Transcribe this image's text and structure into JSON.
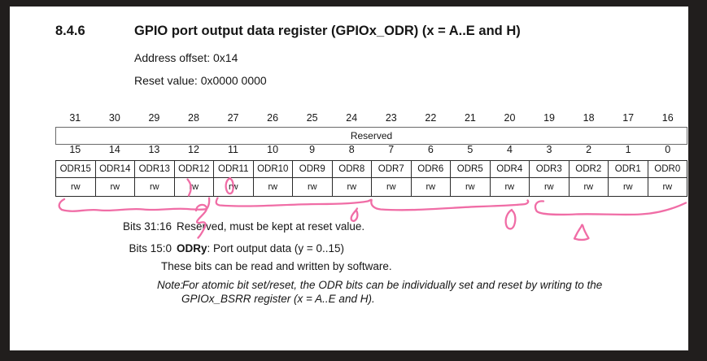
{
  "document": {
    "section_number": "8.4.6",
    "title": "GPIO port output data register (GPIOx_ODR) (x = A..E and H)",
    "address_offset": "Address offset: 0x14",
    "reset_value": "Reset value: 0x0000 0000"
  },
  "register_table": {
    "bits_high": [
      "31",
      "30",
      "29",
      "28",
      "27",
      "26",
      "25",
      "24",
      "23",
      "22",
      "21",
      "20",
      "19",
      "18",
      "17",
      "16"
    ],
    "reserved_label": "Reserved",
    "bits_low": [
      "15",
      "14",
      "13",
      "12",
      "11",
      "10",
      "9",
      "8",
      "7",
      "6",
      "5",
      "4",
      "3",
      "2",
      "1",
      "0"
    ],
    "fields": [
      "ODR15",
      "ODR14",
      "ODR13",
      "ODR12",
      "ODR11",
      "ODR10",
      "ODR9",
      "ODR8",
      "ODR7",
      "ODR6",
      "ODR5",
      "ODR4",
      "ODR3",
      "ODR2",
      "ODR1",
      "ODR0"
    ],
    "access": [
      "rw",
      "rw",
      "rw",
      "rw",
      "rw",
      "rw",
      "rw",
      "rw",
      "rw",
      "rw",
      "rw",
      "rw",
      "rw",
      "rw",
      "rw",
      "rw"
    ]
  },
  "description": {
    "row1_label": "Bits 31:16",
    "row1_text": "Reserved, must be kept at reset value.",
    "row2_label": "Bits 15:0",
    "row2_field": "ODRy",
    "row2_text": ": Port output data (y = 0..15)",
    "row2_line2": "These bits can be read and written by software.",
    "note_label": "Note:",
    "note_line1": "For atomic bit set/reset, the ODR bits can be individually set and reset by writing to the",
    "note_line2": "GPIOx_BSRR register (x = A..E and H)."
  },
  "annotations": {
    "color": "#f06da6",
    "items": [
      "pen-tick-in-odr13-rw-cell",
      "pen-oval-in-odr12-rw-cell",
      "pen-underline-bits-15-12",
      "pen-digit-2",
      "pen-underline-bits-11-4",
      "pen-curl-under-bit-8",
      "pen-digit-0-under-bit-4",
      "pen-underline-bits-3-0",
      "pen-triangle-under-bit-2"
    ]
  },
  "colors": {
    "frame_background": "#211e1d",
    "page_background": "#ffffff",
    "text": "#161616"
  }
}
